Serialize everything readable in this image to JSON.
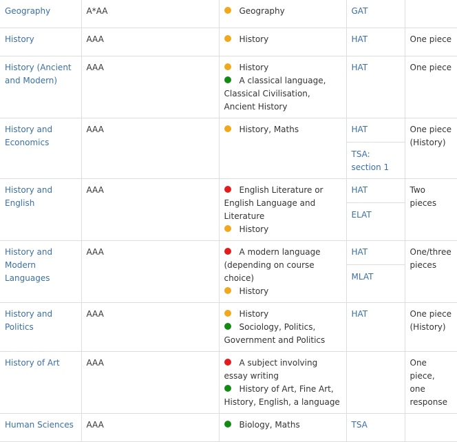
{
  "colors": {
    "link": "#3a6fa6",
    "recommended_dot": "#f0a81d",
    "essential_dot": "#e21c1c",
    "helpful_dot": "#138a12"
  },
  "rows": [
    {
      "course": "Geography",
      "grades": "A*AA",
      "subjects": [
        {
          "level": "recommended",
          "text": "Geography"
        }
      ],
      "tests": [
        "GAT"
      ],
      "written_work": ""
    },
    {
      "course": "History",
      "grades": "AAA",
      "subjects": [
        {
          "level": "recommended",
          "text": "History"
        }
      ],
      "tests": [
        "HAT"
      ],
      "written_work": "One piece"
    },
    {
      "course": "History (Ancient and Modern)",
      "grades": "AAA",
      "subjects": [
        {
          "level": "recommended",
          "text": "History"
        },
        {
          "level": "helpful",
          "text": "A classical language, Classical Civilisation, Ancient History"
        }
      ],
      "tests": [
        "HAT"
      ],
      "written_work": "One piece"
    },
    {
      "course": "History and Economics",
      "grades": "AAA",
      "subjects": [
        {
          "level": "recommended",
          "text": "History, Maths"
        }
      ],
      "tests": [
        "HAT",
        "TSA: section 1"
      ],
      "written_work": "One piece (History)"
    },
    {
      "course": "History and English",
      "grades": "AAA",
      "subjects": [
        {
          "level": "essential",
          "text": "English Literature or English Language and Literature"
        },
        {
          "level": "recommended",
          "text": "History"
        }
      ],
      "tests": [
        "HAT",
        "ELAT"
      ],
      "written_work": "Two pieces"
    },
    {
      "course": "History and Modern Languages",
      "grades": "AAA",
      "subjects": [
        {
          "level": "essential",
          "text": "A modern language (depending on course choice)"
        },
        {
          "level": "recommended",
          "text": "History"
        }
      ],
      "tests": [
        "HAT",
        "MLAT"
      ],
      "written_work": "One/three pieces"
    },
    {
      "course": "History and Politics",
      "grades": "AAA",
      "subjects": [
        {
          "level": "recommended",
          "text": "History"
        },
        {
          "level": "helpful",
          "text": "Sociology, Politics, Government and Politics"
        }
      ],
      "tests": [
        "HAT"
      ],
      "written_work": "One piece (History)"
    },
    {
      "course": "History of Art",
      "grades": "AAA",
      "subjects": [
        {
          "level": "essential",
          "text": "A subject involving essay writing"
        },
        {
          "level": "helpful",
          "text": "History of Art, Fine Art, History, English, a language"
        }
      ],
      "tests": [],
      "written_work": "One piece, one response"
    },
    {
      "course": "Human Sciences",
      "grades": "AAA",
      "subjects": [
        {
          "level": "helpful",
          "text": "Biology, Maths"
        }
      ],
      "tests": [
        "TSA"
      ],
      "written_work": ""
    }
  ]
}
